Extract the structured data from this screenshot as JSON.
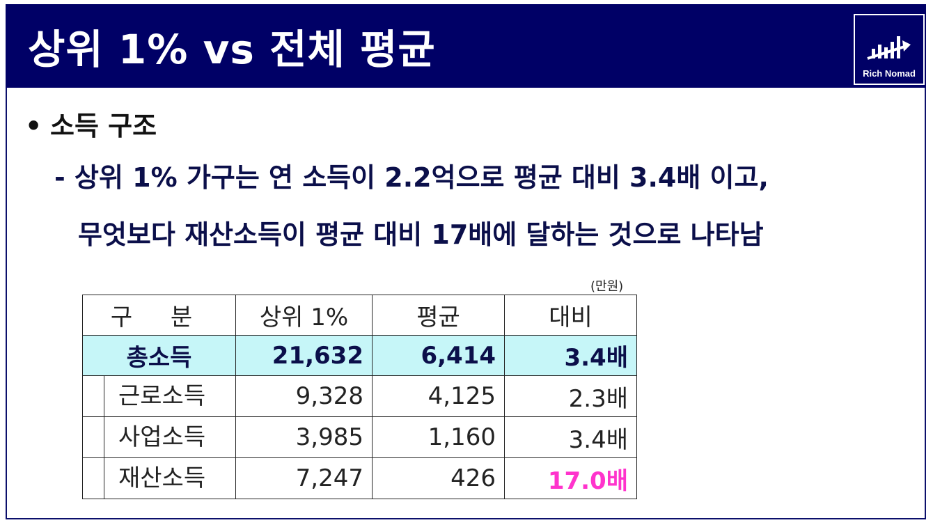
{
  "header": {
    "title": "상위 1% vs 전체 평균",
    "logo_text": "Rich Nomad"
  },
  "content": {
    "bullet_symbol": "•",
    "bullet": "소득 구조",
    "line1": "- 상위 1% 가구는 연 소득이 2.2억으로 평균 대비 3.4배 이고,",
    "line2": "무엇보다 재산소득이 평균 대비 17배에 달하는 것으로 나타남"
  },
  "table": {
    "unit": "(만원)",
    "headers": [
      "구 분",
      "상위 1%",
      "평균",
      "대비"
    ],
    "rows": [
      [
        "총소득",
        "21,632",
        "6,414",
        "3.4배"
      ],
      [
        "근로소득",
        "9,328",
        "4,125",
        "2.3배"
      ],
      [
        "사업소득",
        "3,985",
        "1,160",
        "3.4배"
      ],
      [
        "재산소득",
        "7,247",
        "426",
        "17.0배"
      ]
    ]
  },
  "colors": {
    "header_bg": "#000066",
    "total_row_bg": "#c6f6f8",
    "highlight": "#ff33cc"
  }
}
